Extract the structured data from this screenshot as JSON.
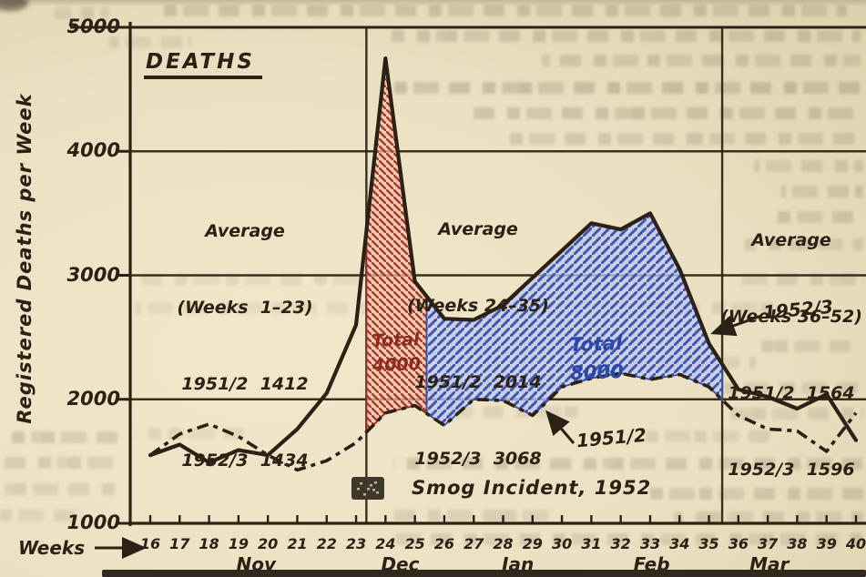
{
  "figure": {
    "title": "DEATHS",
    "y_axis": {
      "title": "Registered Deaths per Week"
    },
    "x_axis": {
      "label": "Weeks",
      "months": [
        {
          "label": "Nov",
          "week": 19.6
        },
        {
          "label": "Dec",
          "week": 24.5
        },
        {
          "label": "Jan",
          "week": 28.5
        },
        {
          "label": "Feb",
          "week": 33.05
        },
        {
          "label": "Mar",
          "week": 37.05
        }
      ]
    }
  },
  "annotations": {
    "average_blocks": [
      {
        "lines": [
          "Average",
          "(Weeks  1–23)",
          "1951/2  1412",
          "1952/3  1434"
        ]
      },
      {
        "lines": [
          "Average",
          "(Weeks 24–35)",
          "1951/2  2014",
          "1952/3  3068"
        ]
      },
      {
        "lines": [
          "Average",
          "(Weeks 36–52)",
          "1951/2  1564",
          "1952/3  1596"
        ]
      }
    ]
  },
  "chart_data": {
    "type": "line",
    "title": "DEATHS",
    "xlabel": "Weeks",
    "ylabel": "Registered Deaths per Week",
    "x": [
      16,
      17,
      18,
      19,
      20,
      21,
      22,
      23,
      24,
      25,
      26,
      27,
      28,
      29,
      30,
      31,
      32,
      33,
      34,
      35,
      36,
      37,
      38,
      39,
      40
    ],
    "ylim": [
      1000,
      5000
    ],
    "y_ticks": [
      5000,
      4000,
      3000,
      2000,
      1000
    ],
    "grid_values": [
      4000,
      3000,
      2000
    ],
    "series": [
      {
        "name": "1952/3",
        "style": "solid",
        "values": [
          1550,
          1635,
          1490,
          1590,
          1550,
          1760,
          2050,
          2600,
          4750,
          2950,
          2650,
          2640,
          2760,
          2980,
          3200,
          3420,
          3370,
          3500,
          3050,
          2450,
          2080,
          2020,
          1925,
          2040,
          1670
        ]
      },
      {
        "name": "1951/2",
        "style": "dashed",
        "values": [
          1550,
          1720,
          1800,
          1700,
          1550,
          1430,
          1505,
          1650,
          1890,
          1950,
          1790,
          2000,
          1990,
          1870,
          2100,
          2170,
          2210,
          2160,
          2200,
          2100,
          1870,
          1760,
          1745,
          1580,
          1890
        ]
      }
    ],
    "shaded_regions": [
      {
        "label": "Total 4000",
        "label_lines": [
          "Total",
          "4000"
        ],
        "hatch": "\\",
        "from_week": 23.35,
        "to_week": 25.4,
        "between": [
          "1952/3",
          "1951/2"
        ]
      },
      {
        "label": "Total 8000",
        "label_lines": [
          "Total",
          "8000"
        ],
        "hatch": "/",
        "from_week": 25.4,
        "to_week": 35.45,
        "between": [
          "1952/3",
          "1951/2"
        ]
      }
    ],
    "region_dividers_weeks": [
      23.35,
      35.45
    ],
    "averages": [
      {
        "weeks": "1-23",
        "avg_1951_2": 1412,
        "avg_1952_3": 1434
      },
      {
        "weeks": "24-35",
        "avg_1951_2": 2014,
        "avg_1952_3": 3068
      },
      {
        "weeks": "36-52",
        "avg_1951_2": 1564,
        "avg_1952_3": 1596
      }
    ],
    "event_marker": {
      "label": "Smog Incident, 1952",
      "week": 23.4
    }
  },
  "colors": {
    "paper": "#ebe0c2",
    "ink": "#2b2114",
    "red_hatch": "#a93a2c",
    "red_fill": "#eec4ae",
    "red_edge": "#8d2f23",
    "red_text": "#8d2a20",
    "blue_hatch": "#3f58b4",
    "blue_fill": "#c3cbec",
    "blue_edge": "#3550ab",
    "blue_text": "#2c47a8"
  }
}
